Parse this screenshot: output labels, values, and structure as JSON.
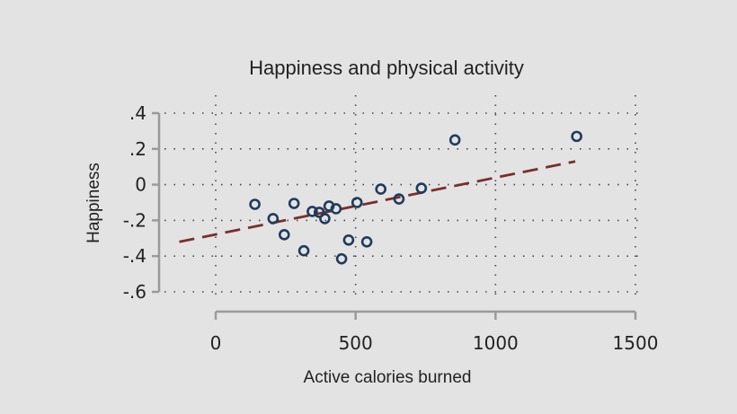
{
  "chart_data": {
    "type": "scatter",
    "title": "Happiness and physical activity",
    "xlabel": "Active calories burned",
    "ylabel": "Happiness",
    "xlim": [
      0,
      1500
    ],
    "ylim": [
      -0.6,
      0.4
    ],
    "x_ticks": [
      0,
      500,
      1000,
      1500
    ],
    "x_tick_labels": [
      "0",
      "500",
      "1000",
      "1500"
    ],
    "y_ticks": [
      0.4,
      0.2,
      0,
      -0.2,
      -0.4,
      -0.6
    ],
    "y_tick_labels": [
      ".4",
      ".2",
      "0",
      "-.2",
      "-.4",
      "-.6"
    ],
    "grid": true,
    "point_color": "#1f3b5c",
    "fit_color": "#7a2e2e",
    "points": [
      {
        "x": 140,
        "y": -0.11
      },
      {
        "x": 205,
        "y": -0.19
      },
      {
        "x": 245,
        "y": -0.28
      },
      {
        "x": 280,
        "y": -0.105
      },
      {
        "x": 315,
        "y": -0.37
      },
      {
        "x": 345,
        "y": -0.15
      },
      {
        "x": 370,
        "y": -0.155
      },
      {
        "x": 390,
        "y": -0.19
      },
      {
        "x": 405,
        "y": -0.12
      },
      {
        "x": 430,
        "y": -0.135
      },
      {
        "x": 450,
        "y": -0.415
      },
      {
        "x": 475,
        "y": -0.31
      },
      {
        "x": 505,
        "y": -0.1
      },
      {
        "x": 540,
        "y": -0.32
      },
      {
        "x": 590,
        "y": -0.025
      },
      {
        "x": 655,
        "y": -0.08
      },
      {
        "x": 735,
        "y": -0.02
      },
      {
        "x": 855,
        "y": 0.25
      },
      {
        "x": 1290,
        "y": 0.27
      }
    ],
    "fit_line": {
      "x": [
        -130,
        1285
      ],
      "y": [
        -0.32,
        0.13
      ]
    }
  }
}
